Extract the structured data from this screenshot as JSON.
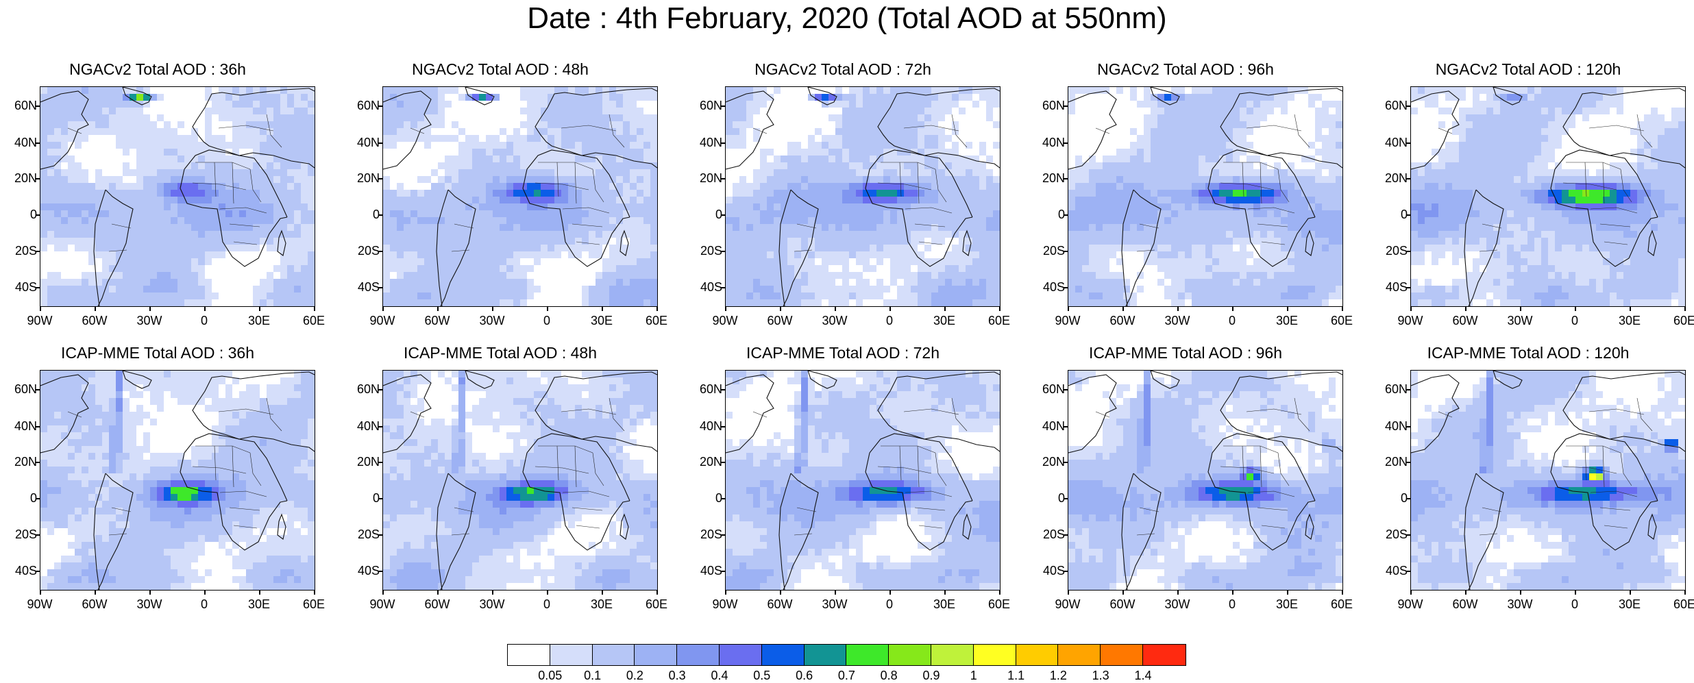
{
  "title": "Date : 4th February, 2020 (Total AOD at 550nm)",
  "axes": {
    "lat_labels": [
      "60N",
      "40N",
      "20N",
      "0",
      "20S",
      "40S"
    ],
    "lon_labels": [
      "90W",
      "60W",
      "30W",
      "0",
      "30E",
      "60E"
    ]
  },
  "panels": [
    {
      "title": "NGACv2 Total AOD : 36h"
    },
    {
      "title": "NGACv2 Total AOD : 48h"
    },
    {
      "title": "NGACv2 Total AOD : 72h"
    },
    {
      "title": "NGACv2 Total AOD : 96h"
    },
    {
      "title": "NGACv2 Total AOD : 120h"
    },
    {
      "title": "ICAP-MME Total AOD : 36h"
    },
    {
      "title": "ICAP-MME Total AOD : 48h"
    },
    {
      "title": "ICAP-MME Total AOD : 72h"
    },
    {
      "title": "ICAP-MME Total AOD : 96h"
    },
    {
      "title": "ICAP-MME Total AOD : 120h"
    }
  ],
  "colorbar": {
    "labels": [
      "0.05",
      "0.1",
      "0.2",
      "0.3",
      "0.4",
      "0.5",
      "0.6",
      "0.7",
      "0.8",
      "0.9",
      "1",
      "1.1",
      "1.2",
      "1.3",
      "1.4"
    ],
    "colors": [
      "#ffffff",
      "#d5defa",
      "#b6c6f6",
      "#9db2f4",
      "#8096f0",
      "#6a6ef0",
      "#0b5de8",
      "#129494",
      "#3ee82a",
      "#86e81a",
      "#bff23a",
      "#ffff22",
      "#ffcc00",
      "#ffa400",
      "#ff7800",
      "#ff2a10"
    ]
  }
}
